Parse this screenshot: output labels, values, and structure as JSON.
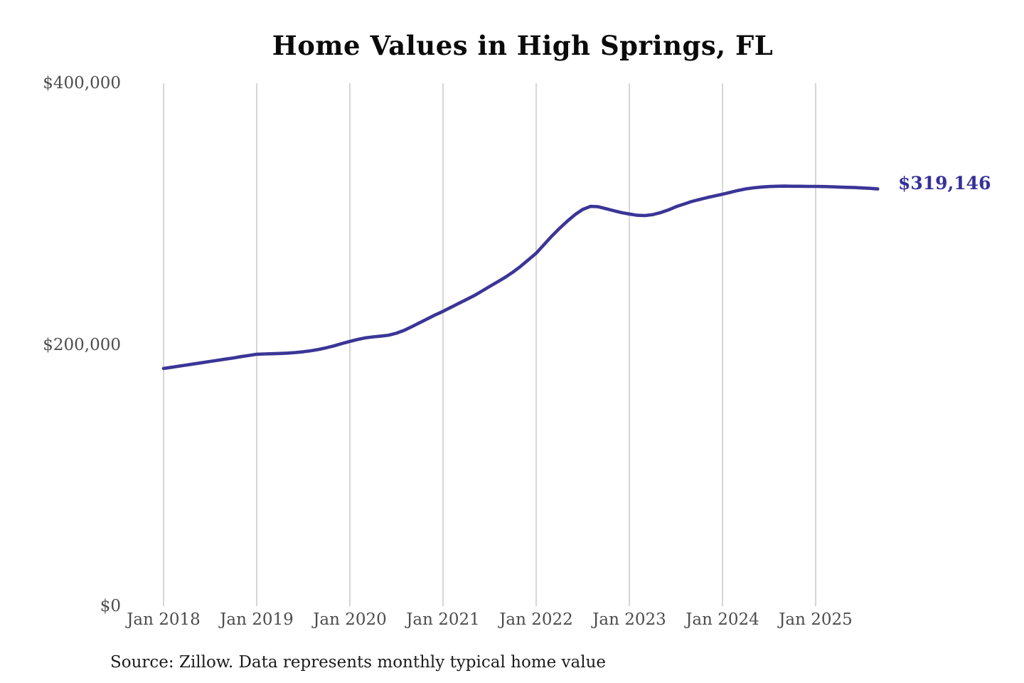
{
  "title": "Home Values in High Springs, FL",
  "source_note": "Source: Zillow. Data represents monthly typical home value",
  "colors": {
    "line": "#3b3597",
    "grid": "#c8c8c8",
    "axis_text": "#4d4d4d",
    "title_text": "#0a0a0a",
    "end_label_text": "#35309a",
    "background": "#ffffff"
  },
  "chart_data": {
    "type": "line",
    "title": "Home Values in High Springs, FL",
    "series_name": "Monthly typical home value",
    "x_interval": "monthly",
    "x": [
      "2018-01",
      "2018-02",
      "2018-03",
      "2018-04",
      "2018-05",
      "2018-06",
      "2018-07",
      "2018-08",
      "2018-09",
      "2018-10",
      "2018-11",
      "2018-12",
      "2019-01",
      "2019-02",
      "2019-03",
      "2019-04",
      "2019-05",
      "2019-06",
      "2019-07",
      "2019-08",
      "2019-09",
      "2019-10",
      "2019-11",
      "2019-12",
      "2020-01",
      "2020-02",
      "2020-03",
      "2020-04",
      "2020-05",
      "2020-06",
      "2020-07",
      "2020-08",
      "2020-09",
      "2020-10",
      "2020-11",
      "2020-12",
      "2021-01",
      "2021-02",
      "2021-03",
      "2021-04",
      "2021-05",
      "2021-06",
      "2021-07",
      "2021-08",
      "2021-09",
      "2021-10",
      "2021-11",
      "2021-12",
      "2022-01",
      "2022-02",
      "2022-03",
      "2022-04",
      "2022-05",
      "2022-06",
      "2022-07",
      "2022-08",
      "2022-09",
      "2022-10",
      "2022-11",
      "2022-12",
      "2023-01",
      "2023-02",
      "2023-03",
      "2023-04",
      "2023-05",
      "2023-06",
      "2023-07",
      "2023-08",
      "2023-09",
      "2023-10",
      "2023-11",
      "2023-12",
      "2024-01",
      "2024-02",
      "2024-03",
      "2024-04",
      "2024-05",
      "2024-06",
      "2024-07",
      "2024-08",
      "2024-09",
      "2024-10",
      "2024-11",
      "2024-12",
      "2025-01",
      "2025-02",
      "2025-03",
      "2025-04",
      "2025-05",
      "2025-06",
      "2025-07",
      "2025-08",
      "2025-09"
    ],
    "values": [
      181800,
      182700,
      183600,
      184500,
      185400,
      186300,
      187200,
      188100,
      189000,
      189900,
      190900,
      191800,
      192700,
      192900,
      193100,
      193300,
      193600,
      194000,
      194600,
      195400,
      196400,
      197700,
      199200,
      200900,
      202500,
      204000,
      205200,
      206000,
      206600,
      207300,
      208800,
      211000,
      213800,
      216800,
      219800,
      222800,
      225500,
      228500,
      231500,
      234500,
      237500,
      241000,
      244500,
      248000,
      251500,
      255500,
      260000,
      265000,
      270000,
      276500,
      283000,
      289000,
      294500,
      299500,
      303500,
      305800,
      305500,
      304000,
      302500,
      301000,
      300000,
      299000,
      298800,
      299500,
      301000,
      303000,
      305500,
      307500,
      309500,
      311000,
      312500,
      313800,
      315100,
      316500,
      318000,
      319200,
      320000,
      320600,
      321000,
      321200,
      321300,
      321200,
      321200,
      321100,
      321100,
      321000,
      320800,
      320600,
      320400,
      320200,
      319900,
      319600,
      319146
    ],
    "ylim": [
      0,
      400000
    ],
    "ylabel": "",
    "xlabel": "",
    "grid": "vertical-only",
    "legend": "none",
    "y_ticks": [
      {
        "label": "$0",
        "value": 0
      },
      {
        "label": "$200,000",
        "value": 200000
      },
      {
        "label": "$400,000",
        "value": 400000
      }
    ],
    "x_ticks": [
      {
        "label": "Jan 2018",
        "year": 2018
      },
      {
        "label": "Jan 2019",
        "year": 2019
      },
      {
        "label": "Jan 2020",
        "year": 2020
      },
      {
        "label": "Jan 2021",
        "year": 2021
      },
      {
        "label": "Jan 2022",
        "year": 2022
      },
      {
        "label": "Jan 2023",
        "year": 2023
      },
      {
        "label": "Jan 2024",
        "year": 2024
      },
      {
        "label": "Jan 2025",
        "year": 2025
      }
    ],
    "annotation": {
      "text": "$319,146",
      "value": 319146
    }
  }
}
